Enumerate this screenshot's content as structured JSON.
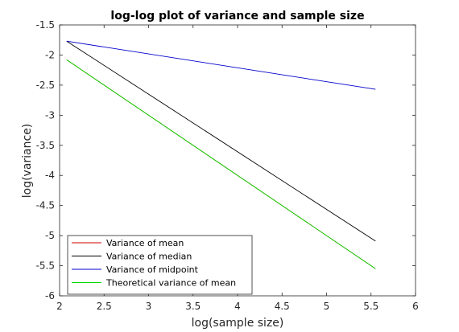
{
  "chart_data": {
    "type": "line",
    "title": "log-log plot of variance and sample size",
    "xlabel": "log(sample size)",
    "ylabel": "log(variance)",
    "xlim": [
      2,
      6
    ],
    "ylim": [
      -6,
      -1.5
    ],
    "xticks": [
      "2",
      "2.5",
      "3",
      "3.5",
      "4",
      "4.5",
      "5",
      "5.5",
      "6"
    ],
    "yticks": [
      "-1.5",
      "-2",
      "-2.5",
      "-3",
      "-3.5",
      "-4",
      "-4.5",
      "-5",
      "-5.5",
      "-6"
    ],
    "x": [
      2.08,
      5.55
    ],
    "grid": false,
    "legend_position": "bottom-left",
    "series": [
      {
        "name": "Variance of mean",
        "color": "#cc0000",
        "values": [
          -2.08,
          -5.55
        ]
      },
      {
        "name": "Variance of median",
        "color": "#000000",
        "values": [
          -1.77,
          -5.09
        ]
      },
      {
        "name": "Variance of midpoint",
        "color": "#0000cc",
        "values": [
          -1.77,
          -2.57
        ]
      },
      {
        "name": "Theoretical variance of mean",
        "color": "#00dd00",
        "values": [
          -2.08,
          -5.55
        ]
      }
    ]
  }
}
